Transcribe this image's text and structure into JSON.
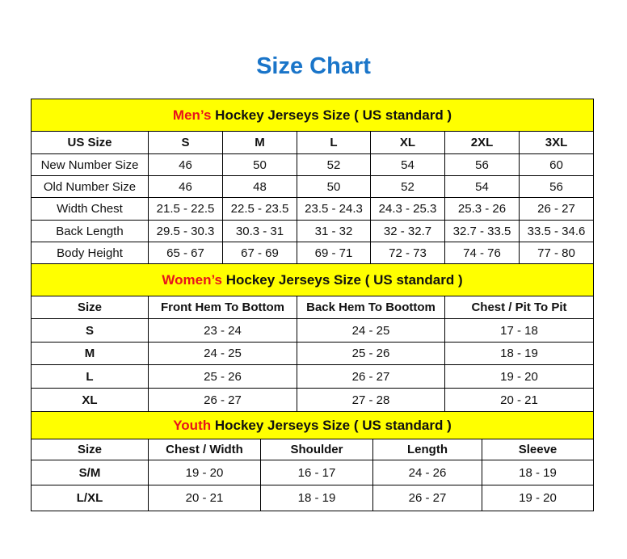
{
  "title": "Size Chart",
  "colors": {
    "title": "#1a75c9",
    "banner": "#ffff00",
    "accent": "#e8141b"
  },
  "men": {
    "banner_accent": "Men’s",
    "banner_rest": " Hockey Jerseys Size ( US standard )",
    "headers": [
      "US Size",
      "S",
      "M",
      "L",
      "XL",
      "2XL",
      "3XL"
    ],
    "rows": [
      [
        "New Number Size",
        "46",
        "50",
        "52",
        "54",
        "56",
        "60"
      ],
      [
        "Old Number Size",
        "46",
        "48",
        "50",
        "52",
        "54",
        "56"
      ],
      [
        "Width Chest",
        "21.5 - 22.5",
        "22.5 - 23.5",
        "23.5 - 24.3",
        "24.3 - 25.3",
        "25.3 - 26",
        "26 - 27"
      ],
      [
        "Back Length",
        "29.5 - 30.3",
        "30.3 - 31",
        "31 - 32",
        "32 - 32.7",
        "32.7 - 33.5",
        "33.5 - 34.6"
      ],
      [
        "Body Height",
        "65 - 67",
        "67 - 69",
        "69 - 71",
        "72 - 73",
        "74 - 76",
        "77 - 80"
      ]
    ]
  },
  "women": {
    "banner_accent": "Women’s",
    "banner_rest": " Hockey Jerseys Size ( US standard )",
    "headers": [
      "Size",
      "Front Hem To Bottom",
      "Back Hem To Boottom",
      "Chest / Pit To Pit"
    ],
    "rows": [
      [
        "S",
        "23 - 24",
        "24 - 25",
        "17 - 18"
      ],
      [
        "M",
        "24 - 25",
        "25 - 26",
        "18 - 19"
      ],
      [
        "L",
        "25 - 26",
        "26 - 27",
        "19 - 20"
      ],
      [
        "XL",
        "26 - 27",
        "27 - 28",
        "20 - 21"
      ]
    ]
  },
  "youth": {
    "banner_accent": "Youth",
    "banner_rest": " Hockey Jerseys Size ( US standard )",
    "headers": [
      "Size",
      "Chest / Width",
      "Shoulder",
      "Length",
      "Sleeve"
    ],
    "rows": [
      [
        "S/M",
        "19 - 20",
        "16 - 17",
        "24 - 26",
        "18 - 19"
      ],
      [
        "L/XL",
        "20 - 21",
        "18 - 19",
        "26 - 27",
        "19 - 20"
      ]
    ]
  }
}
